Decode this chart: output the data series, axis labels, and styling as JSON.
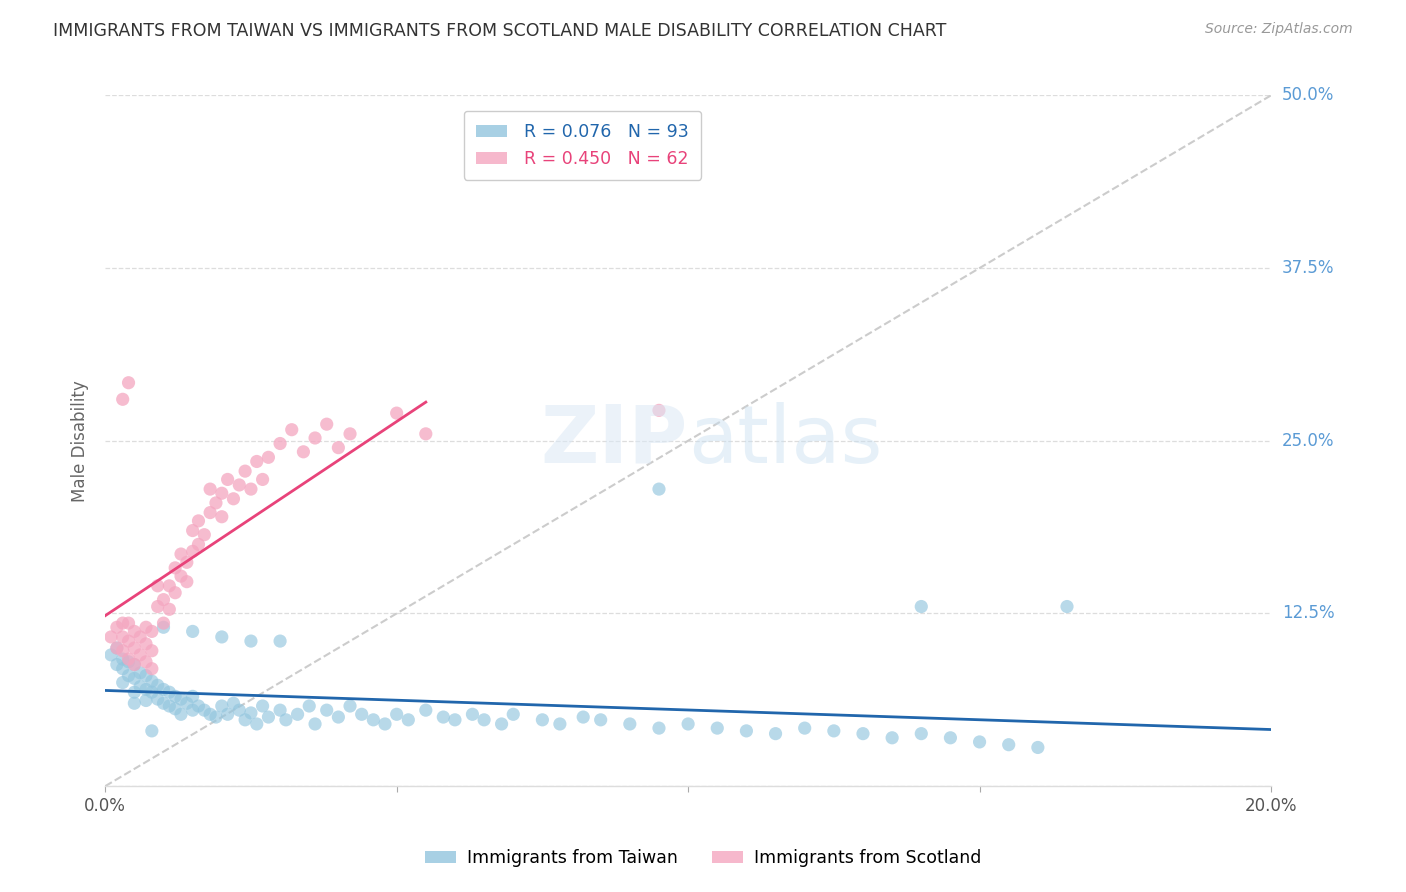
{
  "title": "IMMIGRANTS FROM TAIWAN VS IMMIGRANTS FROM SCOTLAND MALE DISABILITY CORRELATION CHART",
  "source": "Source: ZipAtlas.com",
  "ylabel": "Male Disability",
  "xlim": [
    0.0,
    0.2
  ],
  "ylim": [
    0.0,
    0.5
  ],
  "taiwan_R": 0.076,
  "taiwan_N": 93,
  "scotland_R": 0.45,
  "scotland_N": 62,
  "taiwan_color": "#92c5de",
  "scotland_color": "#f4a6c0",
  "taiwan_line_color": "#2166ac",
  "scotland_line_color": "#e8437a",
  "diagonal_color": "#cccccc",
  "background_color": "#ffffff",
  "title_color": "#333333",
  "source_color": "#999999",
  "right_tick_color": "#5b9bd5",
  "taiwan_scatter_x": [
    0.001,
    0.002,
    0.002,
    0.003,
    0.003,
    0.003,
    0.004,
    0.004,
    0.005,
    0.005,
    0.005,
    0.006,
    0.006,
    0.007,
    0.007,
    0.007,
    0.008,
    0.008,
    0.009,
    0.009,
    0.01,
    0.01,
    0.011,
    0.011,
    0.012,
    0.012,
    0.013,
    0.013,
    0.014,
    0.015,
    0.015,
    0.016,
    0.017,
    0.018,
    0.019,
    0.02,
    0.021,
    0.022,
    0.023,
    0.024,
    0.025,
    0.026,
    0.027,
    0.028,
    0.03,
    0.031,
    0.033,
    0.035,
    0.036,
    0.038,
    0.04,
    0.042,
    0.044,
    0.046,
    0.048,
    0.05,
    0.052,
    0.055,
    0.058,
    0.06,
    0.063,
    0.065,
    0.068,
    0.07,
    0.075,
    0.078,
    0.082,
    0.085,
    0.09,
    0.095,
    0.1,
    0.105,
    0.11,
    0.115,
    0.12,
    0.125,
    0.13,
    0.135,
    0.14,
    0.145,
    0.15,
    0.155,
    0.16,
    0.095,
    0.14,
    0.165,
    0.01,
    0.015,
    0.02,
    0.025,
    0.03,
    0.005,
    0.008
  ],
  "taiwan_scatter_y": [
    0.095,
    0.1,
    0.088,
    0.092,
    0.085,
    0.075,
    0.09,
    0.08,
    0.088,
    0.078,
    0.068,
    0.082,
    0.072,
    0.08,
    0.07,
    0.062,
    0.076,
    0.068,
    0.073,
    0.063,
    0.07,
    0.06,
    0.068,
    0.058,
    0.065,
    0.056,
    0.063,
    0.052,
    0.06,
    0.065,
    0.055,
    0.058,
    0.055,
    0.052,
    0.05,
    0.058,
    0.052,
    0.06,
    0.055,
    0.048,
    0.053,
    0.045,
    0.058,
    0.05,
    0.055,
    0.048,
    0.052,
    0.058,
    0.045,
    0.055,
    0.05,
    0.058,
    0.052,
    0.048,
    0.045,
    0.052,
    0.048,
    0.055,
    0.05,
    0.048,
    0.052,
    0.048,
    0.045,
    0.052,
    0.048,
    0.045,
    0.05,
    0.048,
    0.045,
    0.042,
    0.045,
    0.042,
    0.04,
    0.038,
    0.042,
    0.04,
    0.038,
    0.035,
    0.038,
    0.035,
    0.032,
    0.03,
    0.028,
    0.215,
    0.13,
    0.13,
    0.115,
    0.112,
    0.108,
    0.105,
    0.105,
    0.06,
    0.04
  ],
  "scotland_scatter_x": [
    0.001,
    0.002,
    0.002,
    0.003,
    0.003,
    0.003,
    0.004,
    0.004,
    0.004,
    0.005,
    0.005,
    0.005,
    0.006,
    0.006,
    0.007,
    0.007,
    0.007,
    0.008,
    0.008,
    0.008,
    0.009,
    0.009,
    0.01,
    0.01,
    0.011,
    0.011,
    0.012,
    0.012,
    0.013,
    0.013,
    0.014,
    0.014,
    0.015,
    0.015,
    0.016,
    0.016,
    0.017,
    0.018,
    0.018,
    0.019,
    0.02,
    0.02,
    0.021,
    0.022,
    0.023,
    0.024,
    0.025,
    0.026,
    0.027,
    0.028,
    0.03,
    0.032,
    0.034,
    0.036,
    0.038,
    0.04,
    0.042,
    0.003,
    0.004,
    0.05,
    0.055,
    0.095
  ],
  "scotland_scatter_y": [
    0.108,
    0.1,
    0.115,
    0.098,
    0.108,
    0.118,
    0.092,
    0.105,
    0.118,
    0.088,
    0.1,
    0.112,
    0.095,
    0.108,
    0.09,
    0.103,
    0.115,
    0.085,
    0.098,
    0.112,
    0.13,
    0.145,
    0.118,
    0.135,
    0.128,
    0.145,
    0.14,
    0.158,
    0.152,
    0.168,
    0.148,
    0.162,
    0.17,
    0.185,
    0.175,
    0.192,
    0.182,
    0.198,
    0.215,
    0.205,
    0.195,
    0.212,
    0.222,
    0.208,
    0.218,
    0.228,
    0.215,
    0.235,
    0.222,
    0.238,
    0.248,
    0.258,
    0.242,
    0.252,
    0.262,
    0.245,
    0.255,
    0.28,
    0.292,
    0.27,
    0.255,
    0.272
  ]
}
